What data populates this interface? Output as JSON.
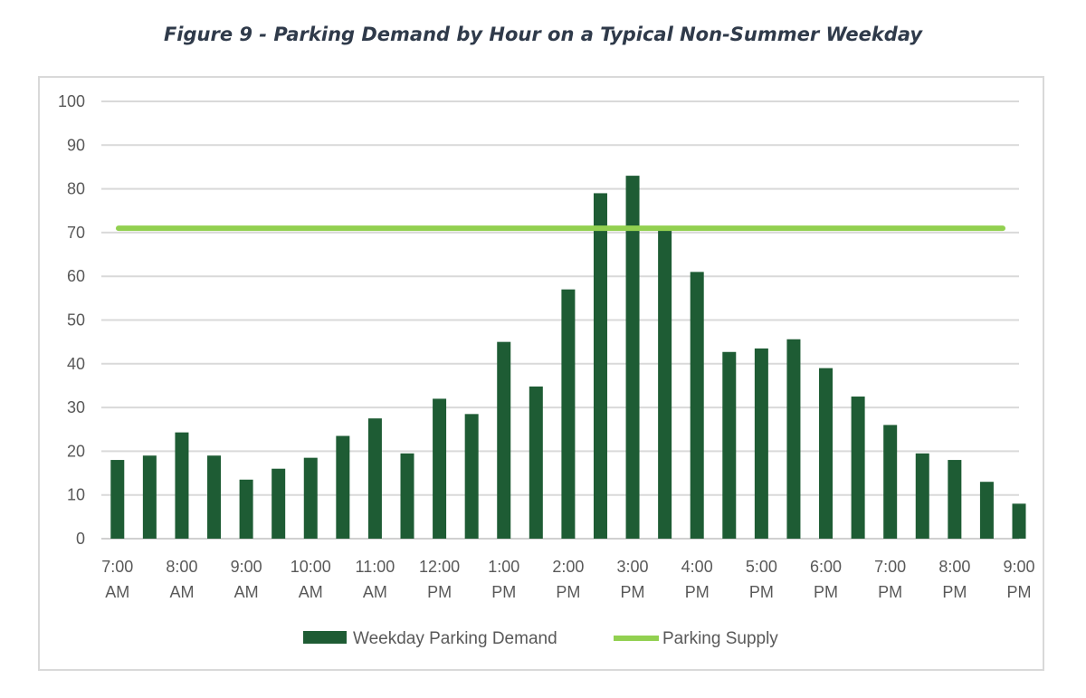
{
  "chart_data": {
    "type": "bar",
    "title": "Figure 9 - Parking Demand by Hour on a Typical Non-Summer Weekday",
    "xlabel": "",
    "ylabel": "",
    "ylim": [
      0,
      100
    ],
    "yticks": [
      0,
      10,
      20,
      30,
      40,
      50,
      60,
      70,
      80,
      90,
      100
    ],
    "grid": true,
    "legend_position": "bottom",
    "x_tick_labels": [
      [
        "7:00",
        "AM"
      ],
      [
        "8:00",
        "AM"
      ],
      [
        "9:00",
        "AM"
      ],
      [
        "10:00",
        "AM"
      ],
      [
        "11:00",
        "AM"
      ],
      [
        "12:00",
        "PM"
      ],
      [
        "1:00",
        "PM"
      ],
      [
        "2:00",
        "PM"
      ],
      [
        "3:00",
        "PM"
      ],
      [
        "4:00",
        "PM"
      ],
      [
        "5:00",
        "PM"
      ],
      [
        "6:00",
        "PM"
      ],
      [
        "7:00",
        "PM"
      ],
      [
        "8:00",
        "PM"
      ],
      [
        "9:00",
        "PM"
      ]
    ],
    "series": [
      {
        "name": "Weekday Parking Demand",
        "type": "bar",
        "color": "#1e5c34",
        "values": [
          18,
          19,
          24.3,
          19,
          13.5,
          16,
          18.5,
          23.5,
          27.5,
          19.5,
          32,
          28.5,
          45,
          34.8,
          57,
          79,
          83,
          70.5,
          61,
          42.7,
          43.5,
          45.6,
          39,
          32.5,
          26,
          19.5,
          18,
          13,
          8
        ]
      },
      {
        "name": "Parking Supply",
        "type": "line",
        "color": "#92d050",
        "value": 71
      }
    ]
  }
}
